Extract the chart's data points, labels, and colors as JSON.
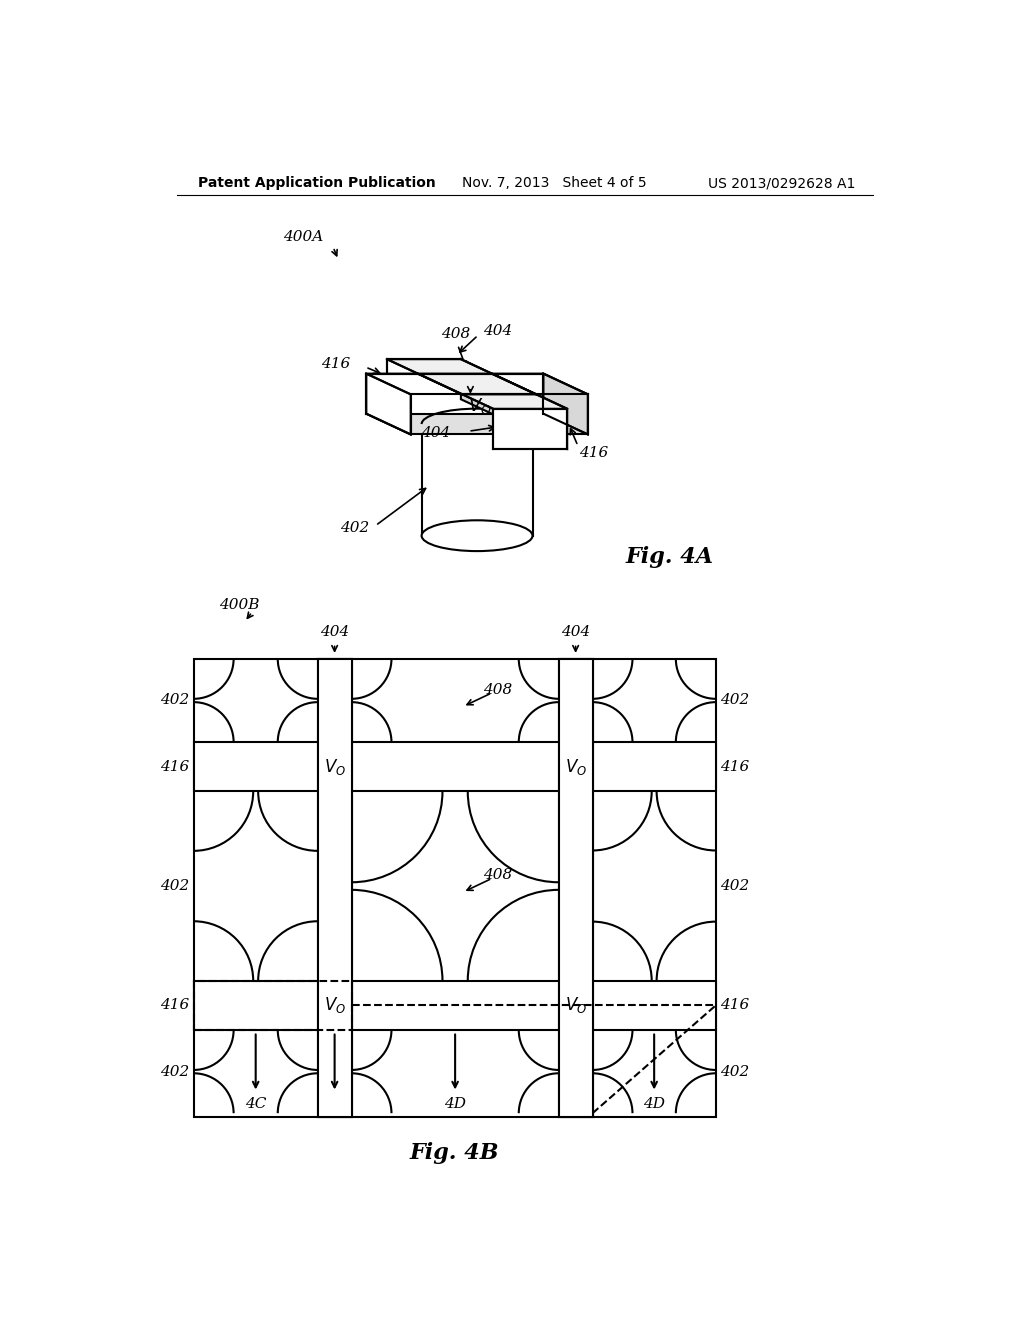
{
  "header_left": "Patent Application Publication",
  "header_mid": "Nov. 7, 2013   Sheet 4 of 5",
  "header_right": "US 2013/0292628 A1",
  "fig4a_label": "Fig. 4A",
  "fig4b_label": "Fig. 4B",
  "bg_color": "#ffffff",
  "line_color": "#000000"
}
